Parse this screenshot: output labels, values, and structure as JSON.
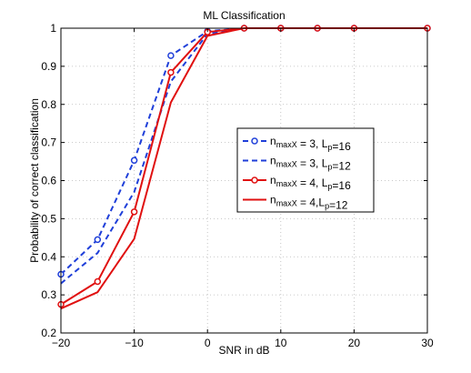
{
  "chart_data": {
    "type": "line",
    "title": "ML Classification",
    "xlabel": "SNR in dB",
    "ylabel": "Probability of correct classification",
    "xlim": [
      -20,
      30
    ],
    "ylim": [
      0.2,
      1
    ],
    "xticks": [
      -20,
      -10,
      0,
      10,
      20,
      30
    ],
    "xtick_labels": [
      "−20",
      "−10",
      "0",
      "10",
      "20",
      "30"
    ],
    "yticks": [
      0.2,
      0.3,
      0.4,
      0.5,
      0.6,
      0.7,
      0.8,
      0.9,
      1.0
    ],
    "ytick_labels": [
      "0.2",
      "0.3",
      "0.4",
      "0.5",
      "0.6",
      "0.7",
      "0.8",
      "0.9",
      "1"
    ],
    "grid": true,
    "legend_position": "center-right",
    "series": [
      {
        "name": "n_maxX = 3, L_p=16",
        "legend_main": "n",
        "legend_sub": "maxX",
        "legend_rest": " = 3, L",
        "legend_sub2": "p",
        "legend_end": "=16",
        "color": "#1f3fd9",
        "line_style": "dashed",
        "marker": "circle",
        "x": [
          -20,
          -15,
          -10,
          -5,
          0,
          5,
          10,
          15,
          20,
          30
        ],
        "y": [
          0.354,
          0.445,
          0.653,
          0.928,
          0.992,
          1.0,
          1.0,
          1.0,
          1.0,
          1.0
        ]
      },
      {
        "name": "n_maxX = 3, L_p=12",
        "legend_main": "n",
        "legend_sub": "maxX",
        "legend_rest": " = 3, L",
        "legend_sub2": "p",
        "legend_end": "=12",
        "color": "#1f3fd9",
        "line_style": "dashed",
        "marker": "none",
        "x": [
          -20,
          -15,
          -10,
          -5,
          0,
          5,
          10,
          15,
          20,
          30
        ],
        "y": [
          0.33,
          0.41,
          0.57,
          0.86,
          0.985,
          1.0,
          1.0,
          1.0,
          1.0,
          1.0
        ]
      },
      {
        "name": "n_maxX = 4, L_p=16",
        "legend_main": "n",
        "legend_sub": "maxX",
        "legend_rest": " = 4, L",
        "legend_sub2": "p",
        "legend_end": "=16",
        "color": "#e01010",
        "line_style": "solid",
        "marker": "circle",
        "x": [
          -20,
          -15,
          -10,
          -5,
          0,
          5,
          10,
          15,
          20,
          30
        ],
        "y": [
          0.275,
          0.335,
          0.518,
          0.884,
          0.99,
          1.0,
          1.0,
          1.0,
          1.0,
          1.0
        ]
      },
      {
        "name": "n_maxX = 4,L_p=12",
        "legend_main": "n",
        "legend_sub": "maxX",
        "legend_rest": " = 4,L",
        "legend_sub2": "p",
        "legend_end": "=12",
        "color": "#e01010",
        "line_style": "solid",
        "marker": "none",
        "x": [
          -20,
          -15,
          -10,
          -5,
          0,
          5,
          10,
          15,
          20,
          30
        ],
        "y": [
          0.264,
          0.307,
          0.447,
          0.805,
          0.98,
          1.0,
          1.0,
          1.0,
          1.0,
          1.0
        ]
      }
    ]
  }
}
